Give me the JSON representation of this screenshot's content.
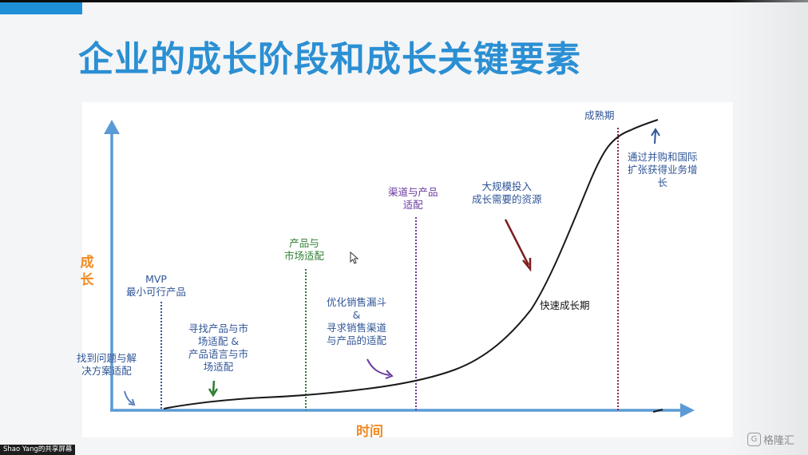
{
  "title": "企业的成长阶段和成长关键要素",
  "axes": {
    "y": "成长",
    "x": "时间"
  },
  "colors": {
    "accent": "#2b8fd3",
    "axis": "#5b9bd5",
    "curve": "#1a1a1a",
    "axis_label": "#f08a22"
  },
  "stages": [
    {
      "label": "MVP\n最小可行产品",
      "color": "#2f5597"
    },
    {
      "label": "产品与\n市场适配",
      "color": "#2e7d32"
    },
    {
      "label": "渠道与产品\n适配",
      "color": "#6a3aa0"
    },
    {
      "label": "成熟期",
      "color": "#2f5597"
    }
  ],
  "notes": {
    "n1": "找到问题与解\n决方案适配",
    "n2": "寻找产品与市\n场适配 &\n产品语言与市\n场适配",
    "n3": "优化销售漏斗\n&\n寻求销售渠道\n与产品的适配",
    "n4": "大规模投入\n成长需要的资源",
    "n5": "快速成长期",
    "n6": "通过并购和国际\n扩张获得业务增\n长"
  },
  "footer": "Shao Yang的共享屏幕",
  "watermark": {
    "icon": "gelonghui-logo-icon",
    "text": "格隆汇"
  }
}
